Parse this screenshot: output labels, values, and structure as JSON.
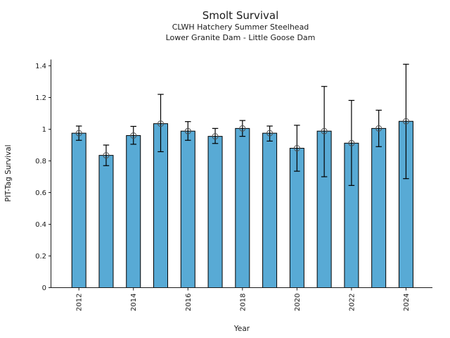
{
  "figure": {
    "title": "Smolt Survival",
    "subtitle_line1": "CLWH Hatchery Summer Steelhead",
    "subtitle_line2": "Lower Granite Dam - Little Goose Dam"
  },
  "chart_data": {
    "type": "bar",
    "title": "Smolt Survival",
    "subtitle_line1": "CLWH Hatchery Summer Steelhead",
    "subtitle_line2": "Lower Granite Dam - Little Goose Dam",
    "xlabel": "Year",
    "ylabel": "PIT-Tag Survival",
    "categories": [
      "2012",
      "2013",
      "2014",
      "2015",
      "2016",
      "2017",
      "2018",
      "2019",
      "2020",
      "2021",
      "2022",
      "2023",
      "2024"
    ],
    "values": [
      0.975,
      0.835,
      0.96,
      1.035,
      0.988,
      0.955,
      1.005,
      0.975,
      0.88,
      0.988,
      0.912,
      1.005,
      1.05
    ],
    "error_low": [
      0.93,
      0.77,
      0.905,
      0.858,
      0.93,
      0.91,
      0.955,
      0.925,
      0.735,
      0.7,
      0.645,
      0.89,
      0.688
    ],
    "error_high": [
      1.02,
      0.9,
      1.018,
      1.22,
      1.048,
      1.005,
      1.055,
      1.02,
      1.025,
      1.27,
      1.182,
      1.12,
      1.41
    ],
    "ylim": [
      0,
      1.44
    ],
    "yticks": [
      0,
      0.2,
      0.4,
      0.6,
      0.8,
      1,
      1.2,
      1.4
    ],
    "ytick_labels": [
      "0",
      "0.2",
      "0.4",
      "0.6",
      "0.8",
      "1",
      "1.2",
      "1.4"
    ],
    "xtick_labels": [
      "2012",
      "2014",
      "2016",
      "2018",
      "2020",
      "2022",
      "2024"
    ],
    "grid": false,
    "legend": "none",
    "marker": "open-circle",
    "colors": {
      "bar_fill": "#58aad5",
      "bar_edge": "#000000",
      "error_bar": "#000000",
      "marker_edge": "#4d4d4d",
      "axis": "#1a1a1a",
      "text": "#1a1a1a",
      "background": "#ffffff"
    }
  }
}
